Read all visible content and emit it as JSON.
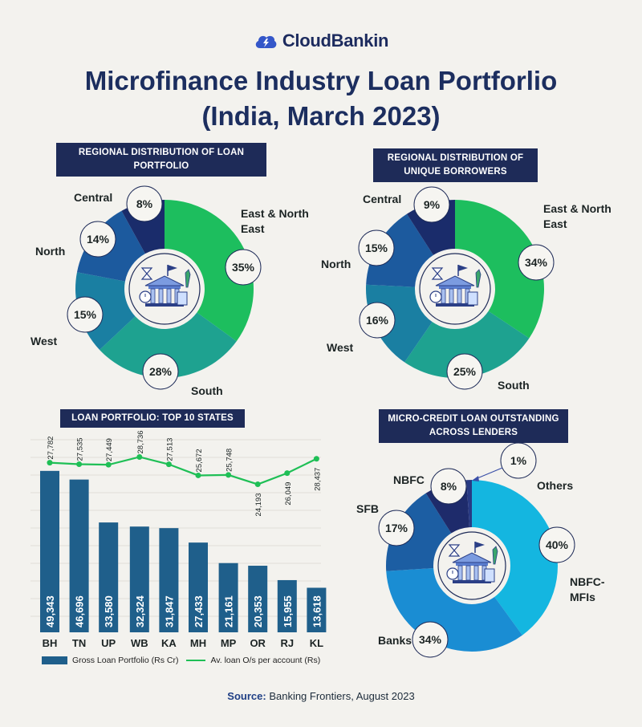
{
  "brand": {
    "name": "CloudBankin"
  },
  "title": {
    "line1": "Microfinance Industry Loan Portforlio",
    "line2": "(India, March 2023)"
  },
  "source": {
    "label": "Source:",
    "text": "Banking Frontiers, August 2023"
  },
  "colors": {
    "navy": "#1e2b58",
    "east": "#1dbe5e",
    "south": "#1ea290",
    "west": "#1a7fa2",
    "north": "#1c5a9e",
    "central": "#1a2c6b",
    "bar": "#1f5f8b",
    "line": "#1fbf56",
    "nbfc_mfi": "#14b6e0",
    "banks": "#1a8dd3",
    "sfb": "#1c5ea3",
    "nbfc": "#1e2b6b",
    "others": "#283a83"
  },
  "chart_data": [
    {
      "type": "pie",
      "title": "REGIONAL DISTRIBUTION OF LOAN PORTFOLIO",
      "slices": [
        {
          "label": "East & North East",
          "value": 35
        },
        {
          "label": "South",
          "value": 28
        },
        {
          "label": "West",
          "value": 15
        },
        {
          "label": "North",
          "value": 14
        },
        {
          "label": "Central",
          "value": 8
        }
      ]
    },
    {
      "type": "pie",
      "title": "REGIONAL DISTRIBUTION OF UNIQUE BORROWERS",
      "slices": [
        {
          "label": "East & North East",
          "value": 34
        },
        {
          "label": "South",
          "value": 25
        },
        {
          "label": "West",
          "value": 16
        },
        {
          "label": "North",
          "value": 15
        },
        {
          "label": "Central",
          "value": 9
        }
      ]
    },
    {
      "type": "bar",
      "title": "LOAN PORTFOLIO: TOP 10 STATES",
      "categories": [
        "BH",
        "TN",
        "UP",
        "WB",
        "KA",
        "MH",
        "MP",
        "OR",
        "RJ",
        "KL"
      ],
      "series": [
        {
          "name": "Gross Loan Portfolio (Rs Cr)",
          "kind": "bar",
          "values": [
            49343,
            46696,
            33580,
            32324,
            31847,
            27433,
            21161,
            20353,
            15955,
            13618
          ],
          "labels": [
            "49,343",
            "46,696",
            "33,580",
            "32,324",
            "31,847",
            "27,433",
            "21,161",
            "20,353",
            "15,955",
            "13,618"
          ]
        },
        {
          "name": "Av. loan O/s per account (Rs)",
          "kind": "line",
          "values": [
            27782,
            27535,
            27449,
            28736,
            27513,
            25672,
            25748,
            24193,
            26049,
            28437
          ],
          "labels": [
            "27,782",
            "27,535",
            "27,449",
            "28,736",
            "27,513",
            "25,672",
            "25,748",
            "24,193",
            "26,049",
            "28,437"
          ]
        }
      ],
      "legend": "bottom"
    },
    {
      "type": "pie",
      "title": "MICRO-CREDIT LOAN OUTSTANDING ACROSS LENDERS",
      "slices": [
        {
          "label": "NBFC-MFIs",
          "value": 40
        },
        {
          "label": "Banks",
          "value": 34
        },
        {
          "label": "SFB",
          "value": 17
        },
        {
          "label": "NBFC",
          "value": 8
        },
        {
          "label": "Others",
          "value": 1
        }
      ]
    }
  ]
}
